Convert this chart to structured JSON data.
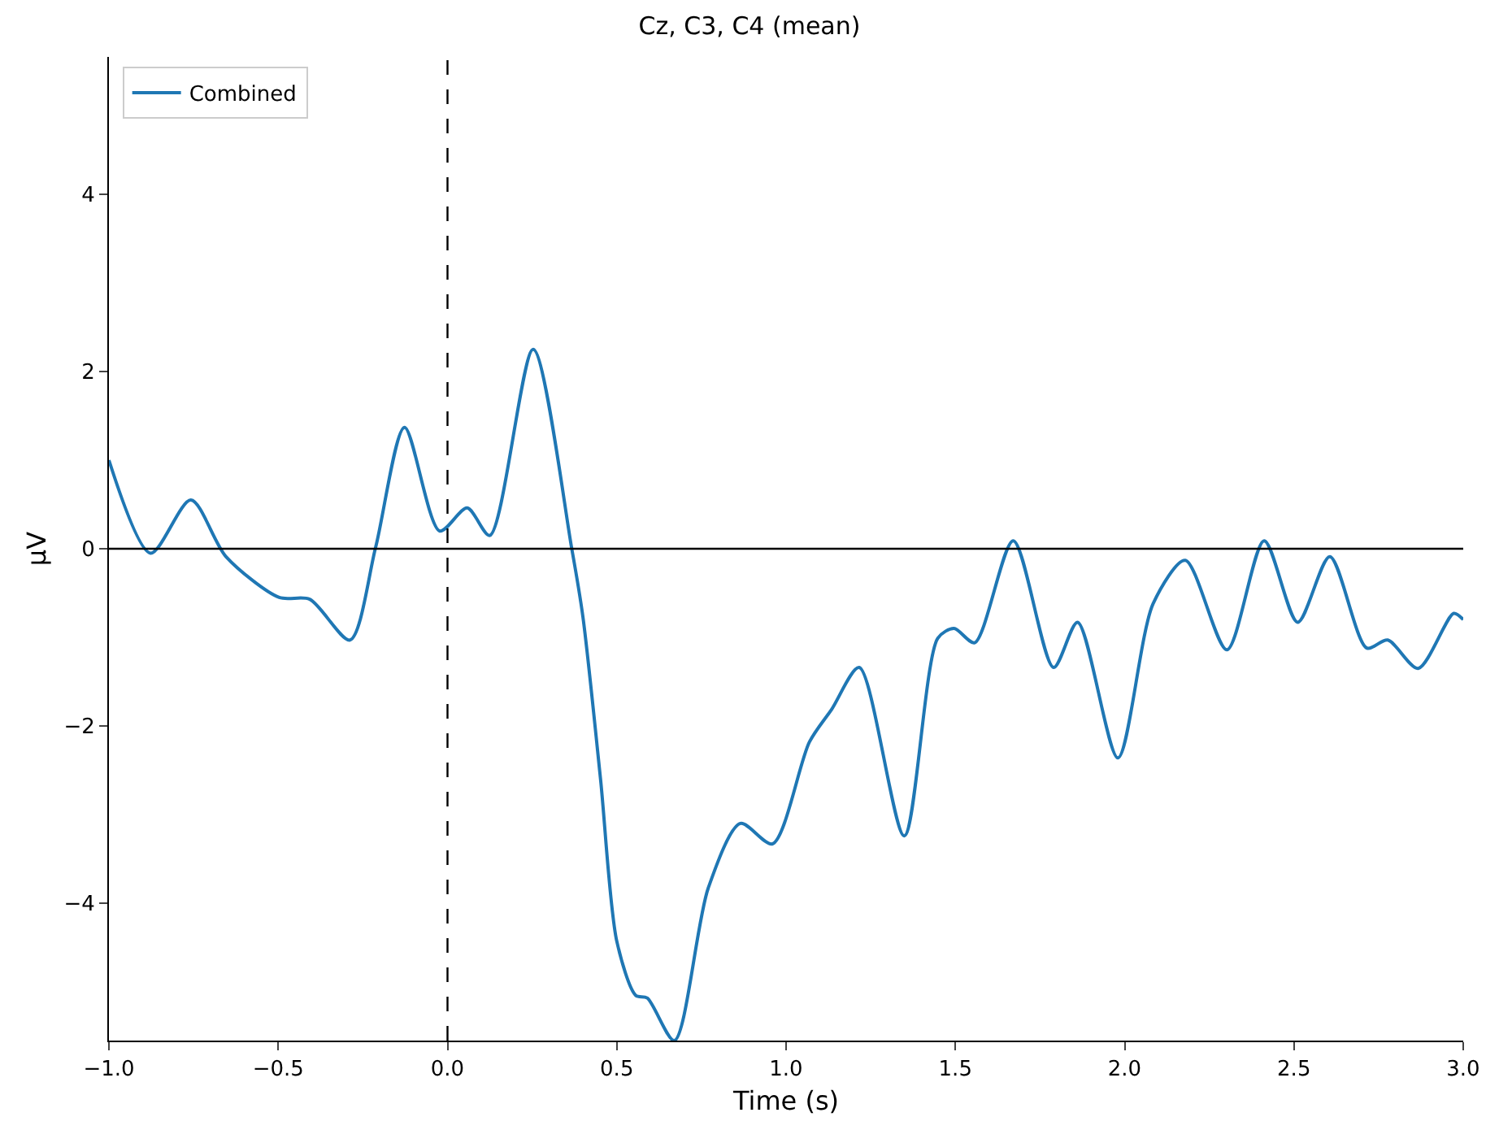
{
  "chart_data": {
    "type": "line",
    "title": "Cz, C3, C4 (mean)",
    "xlabel": "Time (s)",
    "ylabel": "µV",
    "xlim": [
      -1.0,
      3.0
    ],
    "xticks": [
      {
        "value": -1.0,
        "label": "−1.0"
      },
      {
        "value": -0.5,
        "label": "−0.5"
      },
      {
        "value": 0,
        "label": "0.0"
      },
      {
        "value": 0.5,
        "label": "0.5"
      },
      {
        "value": 1.0,
        "label": "1.0"
      },
      {
        "value": 1.5,
        "label": "1.5"
      },
      {
        "value": 2.0,
        "label": "2.0"
      },
      {
        "value": 2.5,
        "label": "2.5"
      },
      {
        "value": 3.0,
        "label": "3.0"
      }
    ],
    "ylim": [
      -5.55,
      5.55
    ],
    "yticks": [
      {
        "value": -4,
        "label": "−4"
      },
      {
        "value": -2,
        "label": "−2"
      },
      0,
      2,
      4
    ],
    "legend": "top left",
    "marker": "none",
    "line_style": "solid",
    "ref_lines": [
      {
        "axis": "y",
        "value": 0,
        "color": "#000000",
        "line_style": "solid"
      },
      {
        "axis": "x",
        "value": 0,
        "color": "#000000",
        "line_style": "dashed"
      }
    ],
    "series": [
      {
        "name": "Combined",
        "color": "#1f77b4",
        "x": [
          -1.0,
          -0.877,
          -0.758,
          -0.654,
          -0.497,
          -0.407,
          -0.288,
          -0.212,
          -0.127,
          -0.023,
          0.058,
          0.125,
          0.253,
          0.367,
          0.4,
          0.452,
          0.5,
          0.556,
          0.59,
          0.67,
          0.77,
          0.865,
          0.96,
          1.069,
          1.135,
          1.216,
          1.349,
          1.448,
          1.496,
          1.557,
          1.671,
          1.79,
          1.861,
          1.98,
          2.084,
          2.179,
          2.302,
          2.412,
          2.511,
          2.606,
          2.715,
          2.777,
          2.867,
          2.972,
          3.0
        ],
        "values": [
          1.0,
          -0.05,
          0.55,
          -0.09,
          -0.55,
          -0.57,
          -1.03,
          0.02,
          1.37,
          0.2,
          0.46,
          0.15,
          2.25,
          0.0,
          -0.77,
          -2.6,
          -4.43,
          -5.04,
          -5.07,
          -5.55,
          -3.83,
          -3.1,
          -3.33,
          -2.18,
          -1.81,
          -1.34,
          -3.24,
          -1.01,
          -0.9,
          -1.06,
          0.09,
          -1.34,
          -0.83,
          -2.36,
          -0.62,
          -0.13,
          -1.14,
          0.09,
          -0.83,
          -0.09,
          -1.12,
          -1.03,
          -1.35,
          -0.73,
          -0.8
        ]
      }
    ]
  }
}
